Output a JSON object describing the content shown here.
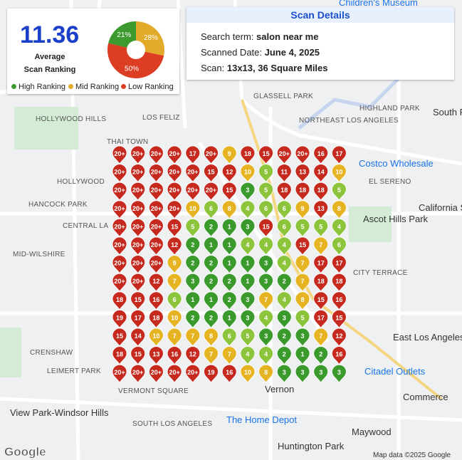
{
  "summary": {
    "average": "11.36",
    "average_label": [
      "Average",
      "Scan Ranking"
    ],
    "pie": {
      "values": [
        21,
        28,
        50
      ],
      "value_labels": [
        "21%",
        "28%",
        "50%"
      ],
      "colors": [
        "#3c9a2e",
        "#e2aa2b",
        "#dc3e24"
      ]
    },
    "legend": [
      "High Ranking",
      "Mid Ranking",
      "Low Ranking"
    ]
  },
  "details": {
    "title": "Scan Details",
    "rows": [
      [
        "Search term: ",
        "salon near me"
      ],
      [
        "Scanned Date: ",
        "June 4, 2025"
      ],
      [
        "Scan: ",
        "13x13, 36 Square Miles"
      ]
    ]
  },
  "grid": [
    [
      "20+",
      "20+",
      "20+",
      "20+",
      "17",
      "20+",
      "9",
      "18",
      "15",
      "20+",
      "20+",
      "16",
      "17"
    ],
    [
      "20+",
      "20+",
      "20+",
      "20+",
      "20+",
      "15",
      "12",
      "10",
      "5",
      "11",
      "13",
      "14",
      "10"
    ],
    [
      "20+",
      "20+",
      "20+",
      "20+",
      "20+",
      "20+",
      "15",
      "3",
      "5",
      "18",
      "18",
      "18",
      "5"
    ],
    [
      "20+",
      "20+",
      "20+",
      "20+",
      "10",
      "6",
      "8",
      "4",
      "6",
      "6",
      "9",
      "13",
      "8"
    ],
    [
      "20+",
      "20+",
      "20+",
      "15",
      "5",
      "2",
      "1",
      "3",
      "15",
      "6",
      "5",
      "5",
      "4"
    ],
    [
      "20+",
      "20+",
      "20+",
      "12",
      "2",
      "1",
      "1",
      "4",
      "4",
      "4",
      "15",
      "7",
      "6"
    ],
    [
      "20+",
      "20+",
      "20+",
      "9",
      "2",
      "2",
      "1",
      "1",
      "3",
      "4",
      "7",
      "17",
      "17"
    ],
    [
      "20+",
      "20+",
      "12",
      "7",
      "3",
      "2",
      "2",
      "1",
      "3",
      "2",
      "7",
      "18",
      "18"
    ],
    [
      "18",
      "15",
      "16",
      "6",
      "1",
      "1",
      "2",
      "3",
      "7",
      "4",
      "8",
      "15",
      "16"
    ],
    [
      "19",
      "17",
      "18",
      "10",
      "2",
      "2",
      "1",
      "3",
      "4",
      "3",
      "5",
      "17",
      "15"
    ],
    [
      "15",
      "14",
      "10",
      "7",
      "7",
      "8",
      "6",
      "5",
      "3",
      "2",
      "3",
      "7",
      "12"
    ],
    [
      "18",
      "15",
      "13",
      "16",
      "12",
      "7",
      "7",
      "4",
      "4",
      "2",
      "1",
      "2",
      "16"
    ],
    [
      "20+",
      "20+",
      "20+",
      "20+",
      "20+",
      "19",
      "16",
      "10",
      "8",
      "3",
      "3",
      "3",
      "3"
    ]
  ],
  "map_labels": [
    "Children's Museum",
    "GLASSELL PARK",
    "HIGHLAND PARK",
    "NORTHEAST LOS ANGELES",
    "South Pasade",
    "HOLLYWOOD HILLS",
    "LOS FELIZ",
    "THAI TOWN",
    "HOLLYWOOD",
    "Costco Wholesale",
    "EL SERENO",
    "HANCOCK PARK",
    "CENTRAL LA",
    "Ascot Hills Park",
    "California State University Los Ange",
    "MID-WILSHIRE",
    "CITY TERRACE",
    "CRENSHAW",
    "East Los Angeles",
    "LEIMERT PARK",
    "Citadel Outlets",
    "VERMONT SQUARE",
    "Vernon",
    "Commerce",
    "View Park-Windsor Hills",
    "SOUTH LOS ANGELES",
    "The Home Depot",
    "Maywood",
    "Huntington Park",
    "Map data ©2025 Google",
    "Google"
  ]
}
